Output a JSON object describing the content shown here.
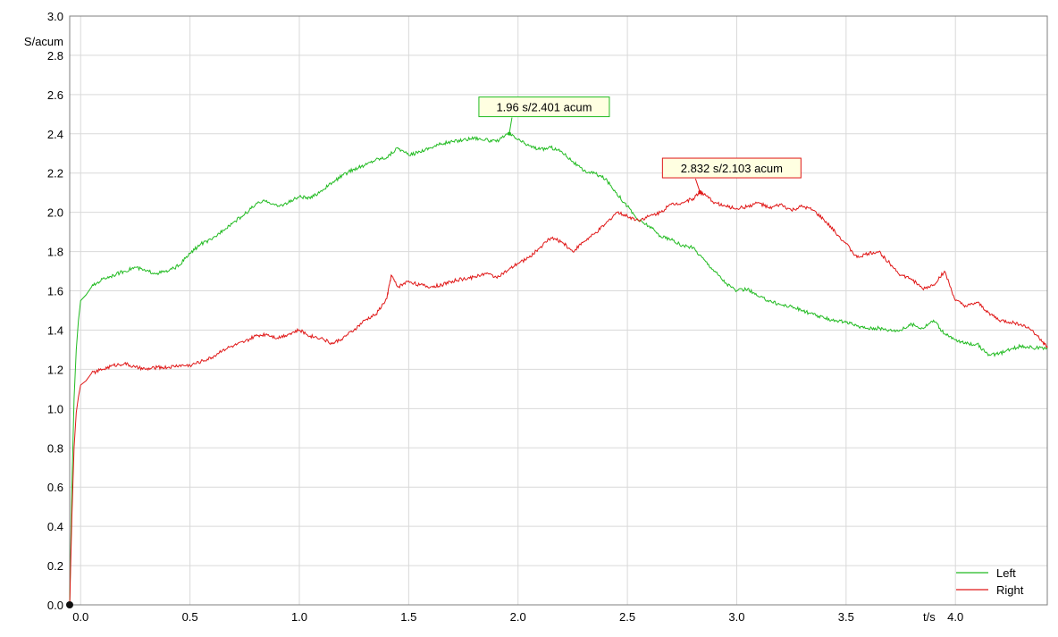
{
  "chart_data": {
    "type": "line",
    "ylabel": "S/acum",
    "xlabel": "t/s",
    "xlim": [
      -0.05,
      4.42
    ],
    "ylim": [
      0.0,
      3.0
    ],
    "x_ticks": [
      0.0,
      0.5,
      1.0,
      1.5,
      2.0,
      2.5,
      3.0,
      3.5,
      4.0
    ],
    "y_ticks": [
      0.0,
      0.2,
      0.4,
      0.6,
      0.8,
      1.0,
      1.2,
      1.4,
      1.6,
      1.8,
      2.0,
      2.2,
      2.4,
      2.6,
      2.8,
      3.0
    ],
    "grid": true,
    "legend_position": "bottom-right",
    "series": [
      {
        "name": "Left",
        "color": "#22bb22",
        "points": [
          [
            -0.05,
            0.0
          ],
          [
            -0.04,
            0.6
          ],
          [
            -0.03,
            1.05
          ],
          [
            -0.02,
            1.3
          ],
          [
            -0.01,
            1.45
          ],
          [
            0.0,
            1.55
          ],
          [
            0.05,
            1.62
          ],
          [
            0.1,
            1.66
          ],
          [
            0.15,
            1.68
          ],
          [
            0.2,
            1.7
          ],
          [
            0.25,
            1.72
          ],
          [
            0.3,
            1.7
          ],
          [
            0.35,
            1.69
          ],
          [
            0.4,
            1.7
          ],
          [
            0.45,
            1.73
          ],
          [
            0.5,
            1.79
          ],
          [
            0.55,
            1.84
          ],
          [
            0.6,
            1.86
          ],
          [
            0.65,
            1.91
          ],
          [
            0.7,
            1.95
          ],
          [
            0.75,
            1.99
          ],
          [
            0.8,
            2.04
          ],
          [
            0.85,
            2.06
          ],
          [
            0.9,
            2.03
          ],
          [
            0.95,
            2.05
          ],
          [
            1.0,
            2.08
          ],
          [
            1.05,
            2.07
          ],
          [
            1.1,
            2.11
          ],
          [
            1.15,
            2.15
          ],
          [
            1.2,
            2.19
          ],
          [
            1.25,
            2.22
          ],
          [
            1.3,
            2.24
          ],
          [
            1.35,
            2.27
          ],
          [
            1.4,
            2.28
          ],
          [
            1.45,
            2.33
          ],
          [
            1.5,
            2.29
          ],
          [
            1.55,
            2.31
          ],
          [
            1.6,
            2.33
          ],
          [
            1.65,
            2.35
          ],
          [
            1.7,
            2.36
          ],
          [
            1.75,
            2.37
          ],
          [
            1.8,
            2.38
          ],
          [
            1.85,
            2.37
          ],
          [
            1.9,
            2.36
          ],
          [
            1.96,
            2.401
          ],
          [
            2.0,
            2.37
          ],
          [
            2.05,
            2.34
          ],
          [
            2.1,
            2.32
          ],
          [
            2.15,
            2.33
          ],
          [
            2.2,
            2.31
          ],
          [
            2.25,
            2.26
          ],
          [
            2.3,
            2.21
          ],
          [
            2.35,
            2.2
          ],
          [
            2.4,
            2.17
          ],
          [
            2.45,
            2.1
          ],
          [
            2.5,
            2.03
          ],
          [
            2.55,
            1.96
          ],
          [
            2.6,
            1.93
          ],
          [
            2.65,
            1.88
          ],
          [
            2.7,
            1.86
          ],
          [
            2.75,
            1.83
          ],
          [
            2.8,
            1.82
          ],
          [
            2.85,
            1.76
          ],
          [
            2.9,
            1.7
          ],
          [
            2.95,
            1.64
          ],
          [
            3.0,
            1.6
          ],
          [
            3.05,
            1.61
          ],
          [
            3.1,
            1.57
          ],
          [
            3.15,
            1.55
          ],
          [
            3.2,
            1.53
          ],
          [
            3.25,
            1.52
          ],
          [
            3.3,
            1.5
          ],
          [
            3.35,
            1.48
          ],
          [
            3.4,
            1.46
          ],
          [
            3.45,
            1.45
          ],
          [
            3.5,
            1.44
          ],
          [
            3.55,
            1.42
          ],
          [
            3.6,
            1.41
          ],
          [
            3.65,
            1.41
          ],
          [
            3.7,
            1.4
          ],
          [
            3.75,
            1.4
          ],
          [
            3.8,
            1.43
          ],
          [
            3.85,
            1.41
          ],
          [
            3.9,
            1.45
          ],
          [
            3.95,
            1.38
          ],
          [
            4.0,
            1.35
          ],
          [
            4.05,
            1.33
          ],
          [
            4.1,
            1.33
          ],
          [
            4.15,
            1.27
          ],
          [
            4.2,
            1.28
          ],
          [
            4.25,
            1.3
          ],
          [
            4.3,
            1.32
          ],
          [
            4.35,
            1.31
          ],
          [
            4.42,
            1.31
          ]
        ]
      },
      {
        "name": "Right",
        "color": "#e01818",
        "points": [
          [
            -0.05,
            0.0
          ],
          [
            -0.04,
            0.45
          ],
          [
            -0.03,
            0.8
          ],
          [
            -0.02,
            0.98
          ],
          [
            -0.01,
            1.06
          ],
          [
            0.0,
            1.12
          ],
          [
            0.05,
            1.18
          ],
          [
            0.1,
            1.2
          ],
          [
            0.15,
            1.22
          ],
          [
            0.2,
            1.23
          ],
          [
            0.25,
            1.21
          ],
          [
            0.3,
            1.2
          ],
          [
            0.35,
            1.21
          ],
          [
            0.4,
            1.21
          ],
          [
            0.45,
            1.22
          ],
          [
            0.5,
            1.22
          ],
          [
            0.55,
            1.24
          ],
          [
            0.6,
            1.26
          ],
          [
            0.65,
            1.3
          ],
          [
            0.7,
            1.32
          ],
          [
            0.75,
            1.34
          ],
          [
            0.8,
            1.37
          ],
          [
            0.85,
            1.38
          ],
          [
            0.9,
            1.36
          ],
          [
            0.95,
            1.38
          ],
          [
            1.0,
            1.4
          ],
          [
            1.05,
            1.37
          ],
          [
            1.1,
            1.36
          ],
          [
            1.15,
            1.33
          ],
          [
            1.2,
            1.36
          ],
          [
            1.25,
            1.4
          ],
          [
            1.3,
            1.45
          ],
          [
            1.35,
            1.48
          ],
          [
            1.4,
            1.56
          ],
          [
            1.42,
            1.68
          ],
          [
            1.45,
            1.62
          ],
          [
            1.5,
            1.65
          ],
          [
            1.55,
            1.63
          ],
          [
            1.6,
            1.62
          ],
          [
            1.65,
            1.63
          ],
          [
            1.7,
            1.65
          ],
          [
            1.75,
            1.66
          ],
          [
            1.8,
            1.67
          ],
          [
            1.85,
            1.69
          ],
          [
            1.9,
            1.67
          ],
          [
            1.95,
            1.7
          ],
          [
            2.0,
            1.74
          ],
          [
            2.05,
            1.77
          ],
          [
            2.1,
            1.82
          ],
          [
            2.15,
            1.87
          ],
          [
            2.2,
            1.85
          ],
          [
            2.25,
            1.8
          ],
          [
            2.3,
            1.85
          ],
          [
            2.35,
            1.89
          ],
          [
            2.4,
            1.94
          ],
          [
            2.45,
            2.0
          ],
          [
            2.5,
            1.98
          ],
          [
            2.55,
            1.96
          ],
          [
            2.6,
            1.98
          ],
          [
            2.65,
            2.0
          ],
          [
            2.7,
            2.04
          ],
          [
            2.75,
            2.05
          ],
          [
            2.8,
            2.07
          ],
          [
            2.832,
            2.103
          ],
          [
            2.85,
            2.09
          ],
          [
            2.9,
            2.05
          ],
          [
            2.95,
            2.03
          ],
          [
            3.0,
            2.02
          ],
          [
            3.05,
            2.03
          ],
          [
            3.1,
            2.05
          ],
          [
            3.15,
            2.02
          ],
          [
            3.2,
            2.04
          ],
          [
            3.25,
            2.01
          ],
          [
            3.3,
            2.03
          ],
          [
            3.35,
            2.01
          ],
          [
            3.4,
            1.96
          ],
          [
            3.45,
            1.9
          ],
          [
            3.5,
            1.84
          ],
          [
            3.55,
            1.77
          ],
          [
            3.6,
            1.79
          ],
          [
            3.65,
            1.8
          ],
          [
            3.7,
            1.74
          ],
          [
            3.75,
            1.68
          ],
          [
            3.8,
            1.66
          ],
          [
            3.85,
            1.61
          ],
          [
            3.9,
            1.63
          ],
          [
            3.95,
            1.7
          ],
          [
            4.0,
            1.55
          ],
          [
            4.05,
            1.52
          ],
          [
            4.1,
            1.54
          ],
          [
            4.15,
            1.49
          ],
          [
            4.2,
            1.45
          ],
          [
            4.25,
            1.44
          ],
          [
            4.3,
            1.43
          ],
          [
            4.35,
            1.4
          ],
          [
            4.4,
            1.34
          ],
          [
            4.42,
            1.31
          ]
        ]
      }
    ],
    "annotations": [
      {
        "text": "1.96 s/2.401 acum",
        "x": 1.96,
        "y": 2.401,
        "series": "Left",
        "border_color": "#22bb22",
        "bg_color": "#ffffe1"
      },
      {
        "text": "2.832 s/2.103 acum",
        "x": 2.832,
        "y": 2.103,
        "series": "Right",
        "border_color": "#e01818",
        "bg_color": "#ffffe1"
      }
    ]
  }
}
